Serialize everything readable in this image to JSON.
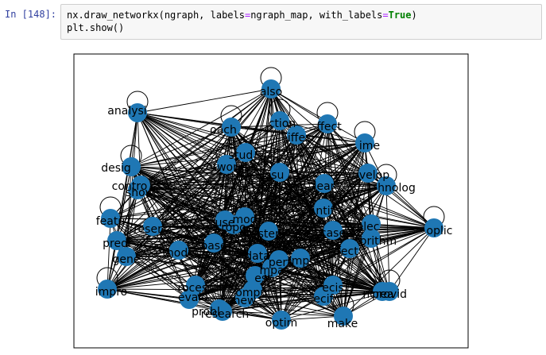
{
  "cell": {
    "prompt": "In [148]:",
    "code": {
      "line1": {
        "a": "nx.draw_networkx(ngraph, labels",
        "eq1": "=",
        "b": "ngraph_map, with_labels",
        "eq2": "=",
        "kw": "True",
        "c": ")"
      },
      "line2": "plt.show()"
    }
  },
  "colors": {
    "node": "#1f77b4",
    "edge": "#000000",
    "frame": "#000000",
    "keyword": "#008000",
    "operator": "#aa22ff",
    "prompt": "#303f9f"
  },
  "chart_data": {
    "type": "network",
    "self_loops": true,
    "labels": [
      "also",
      "analysi",
      "approach",
      "action",
      "affect",
      "differ",
      "time",
      "develop",
      "technolog",
      "design",
      "control",
      "show",
      "applic",
      "featur",
      "predict",
      "gener",
      "improv",
      "research",
      "make",
      "optim",
      "problem",
      "provid",
      "result",
      "system",
      "model",
      "data",
      "method",
      "network",
      "process",
      "effect",
      "propos",
      "perform",
      "test",
      "studi",
      "learn",
      "identifi",
      "select",
      "base",
      "algorithm",
      "present",
      "implement",
      "decis",
      "use",
      "comput",
      "increas",
      "impact",
      "case",
      "new",
      "evalu",
      "specif"
    ],
    "visible_labels": [
      {
        "text": "also"
      },
      {
        "text": "analysi"
      },
      {
        "text": "oach"
      },
      {
        "text": "ction"
      },
      {
        "text": "ffect"
      },
      {
        "text": "iffe"
      },
      {
        "text": "ime"
      },
      {
        "text": "velop"
      },
      {
        "text": "hnolog"
      },
      {
        "text": "desig"
      },
      {
        "text": "contro"
      },
      {
        "text": "show"
      },
      {
        "text": "oplic"
      },
      {
        "text": "featu"
      },
      {
        "text": "predi"
      },
      {
        "text": "gene"
      },
      {
        "text": "impro"
      },
      {
        "text": "research"
      },
      {
        "text": "make"
      },
      {
        "text": "optim"
      },
      {
        "text": "probl"
      },
      {
        "text": "provid"
      },
      {
        "text": "esu"
      },
      {
        "text": "ystem"
      },
      {
        "text": "mod"
      },
      {
        "text": "data"
      },
      {
        "text": "ethod"
      },
      {
        "text": "etwork"
      },
      {
        "text": "rocess"
      },
      {
        "text": "ffect"
      },
      {
        "text": "ropo"
      },
      {
        "text": "perf"
      },
      {
        "text": "est"
      },
      {
        "text": "stud"
      },
      {
        "text": "lear"
      },
      {
        "text": "ntif"
      },
      {
        "text": "elec"
      },
      {
        "text": "base"
      },
      {
        "text": "orithm"
      },
      {
        "text": "reser"
      },
      {
        "text": "mp"
      },
      {
        "text": "ecis"
      },
      {
        "text": "use"
      },
      {
        "text": "omput"
      },
      {
        "text": "ncrea"
      },
      {
        "text": "mpa"
      },
      {
        "text": "case"
      },
      {
        "text": "new"
      },
      {
        "text": "evalu"
      },
      {
        "text": "ecif"
      }
    ]
  }
}
